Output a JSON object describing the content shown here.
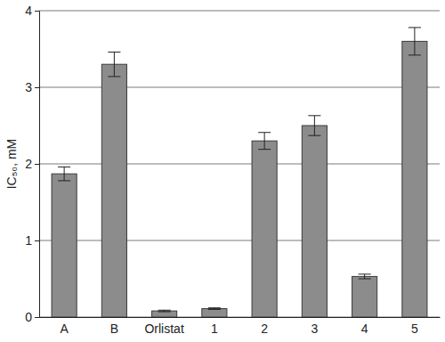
{
  "chart_data": {
    "type": "bar",
    "y_label": "IC₅₀, mM",
    "categories": [
      "A",
      "B",
      "Orlistat",
      "1",
      "2",
      "3",
      "4",
      "5"
    ],
    "values": [
      1.87,
      3.3,
      0.08,
      0.11,
      2.3,
      2.5,
      0.53,
      3.6
    ],
    "errors": [
      0.09,
      0.16,
      0.01,
      0.01,
      0.11,
      0.13,
      0.03,
      0.18
    ],
    "color": "#8c8c8c",
    "ylim": [
      0,
      4
    ],
    "yticks": [
      0,
      1,
      2,
      3,
      4
    ],
    "grid": true
  }
}
